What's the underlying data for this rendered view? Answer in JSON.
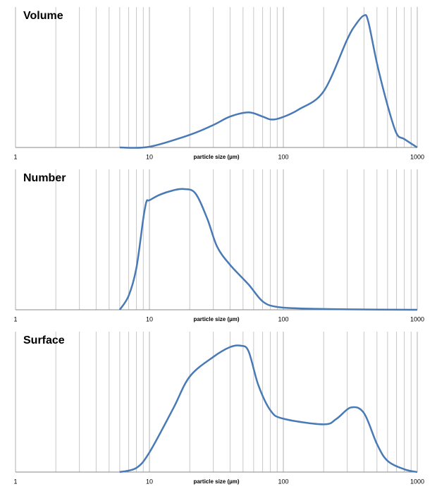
{
  "chart_data": [
    {
      "type": "line",
      "title": "Volume",
      "x_label": "particle size (µm)",
      "log_x": true,
      "grid": true,
      "xlim": [
        1,
        1000
      ],
      "xticks": [
        1,
        10,
        100,
        1000
      ],
      "ylim": [
        0,
        100
      ],
      "x": [
        6,
        10,
        20,
        30,
        40,
        55,
        70,
        80,
        95,
        130,
        200,
        300,
        350,
        400,
        430,
        500,
        600,
        700,
        800,
        1000
      ],
      "series": [
        {
          "name": "Volume",
          "color": "#4a7ab5",
          "values": [
            0,
            0.5,
            9,
            16,
            22,
            25,
            22,
            20,
            21,
            27,
            40,
            77,
            88,
            94,
            90,
            60,
            30,
            10,
            6,
            0
          ]
        }
      ]
    },
    {
      "type": "line",
      "title": "Number",
      "x_label": "particle size (µm)",
      "log_x": true,
      "grid": true,
      "xlim": [
        1,
        1000
      ],
      "xticks": [
        1,
        10,
        100,
        1000
      ],
      "ylim": [
        0,
        100
      ],
      "x": [
        6,
        7,
        8,
        9,
        9.5,
        10,
        12,
        15,
        18,
        22,
        27,
        32,
        40,
        55,
        70,
        90,
        150,
        300,
        1000
      ],
      "series": [
        {
          "name": "Number",
          "color": "#4a7ab5",
          "values": [
            0,
            10,
            30,
            65,
            77,
            78,
            82,
            85,
            86,
            83,
            65,
            45,
            32,
            18,
            6,
            2,
            0.8,
            0.3,
            0
          ]
        }
      ]
    },
    {
      "type": "line",
      "title": "Surface",
      "x_label": "particle size (µm)",
      "log_x": true,
      "grid": true,
      "xlim": [
        1,
        1000
      ],
      "xticks": [
        1,
        10,
        100,
        1000
      ],
      "ylim": [
        0,
        100
      ],
      "x": [
        6,
        8,
        10,
        15,
        20,
        30,
        40,
        48,
        55,
        65,
        80,
        100,
        200,
        250,
        320,
        400,
        500,
        600,
        800,
        1000
      ],
      "series": [
        {
          "name": "Surface",
          "color": "#4a7ab5",
          "values": [
            0,
            3,
            14,
            45,
            68,
            82,
            89,
            90,
            86,
            62,
            44,
            38,
            34,
            38,
            46,
            42,
            20,
            8,
            2,
            0
          ]
        }
      ]
    }
  ]
}
